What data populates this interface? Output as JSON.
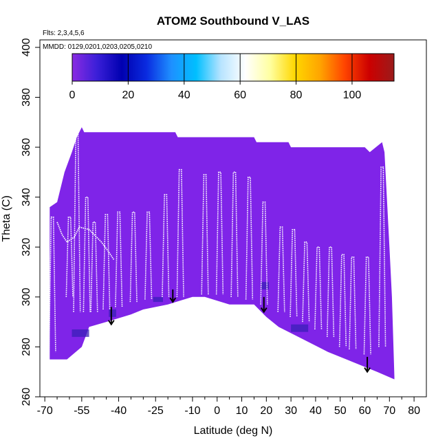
{
  "chart_data": {
    "type": "heatmap",
    "title": "ATOM2 Southbound V_LAS",
    "flights_note": "Flts: 2,3,4,5,6",
    "dates_note": "MMDD: 0129,0201,0203,0205,0210",
    "xlabel": "Latitude (deg N)",
    "ylabel": "Theta (C)",
    "xlim": [
      -72,
      85
    ],
    "ylim": [
      260,
      403
    ],
    "x_ticks_major": [
      -70,
      -55,
      -40,
      -25,
      -10,
      0,
      10,
      20,
      30,
      40,
      50,
      60,
      70,
      80
    ],
    "x_ticks_labels": [
      "-70",
      "-55",
      "-40",
      "-25",
      "-10",
      "0",
      "10",
      "20",
      "30",
      "40",
      "50",
      "60",
      "70",
      "80"
    ],
    "x_ticks_minor": [
      -65,
      -60,
      -50,
      -45,
      -35,
      -30,
      -20,
      -15,
      -5,
      5,
      15,
      25,
      35,
      45,
      55,
      65,
      75
    ],
    "y_ticks": [
      260,
      280,
      300,
      320,
      340,
      360,
      380,
      400
    ],
    "y_tick_labels": [
      "260",
      "280",
      "300",
      "320",
      "340",
      "360",
      "380",
      "400"
    ],
    "colorbar": {
      "min": 0,
      "max": 115,
      "ticks": [
        0,
        20,
        40,
        60,
        80,
        100
      ],
      "tick_labels": [
        "0",
        "20",
        "40",
        "60",
        "80",
        "100"
      ],
      "colors": [
        "#8a2be2",
        "#3a1fd8",
        "#0000b0",
        "#0a2be0",
        "#1e90ff",
        "#00bfff",
        "#b8e4ff",
        "#ffffff",
        "#ffffa0",
        "#ffd700",
        "#ffa500",
        "#ff4500",
        "#cc0000",
        "#9b1b1b"
      ]
    },
    "fill_color": "#7f24e8",
    "domain_top": [
      [
        -68,
        336
      ],
      [
        -65,
        338
      ],
      [
        -62,
        350
      ],
      [
        -59,
        358
      ],
      [
        -57,
        364
      ],
      [
        -55,
        368
      ],
      [
        -54,
        366
      ],
      [
        -37,
        366
      ],
      [
        -17,
        366
      ],
      [
        -16,
        364
      ],
      [
        15,
        364
      ],
      [
        16,
        362
      ],
      [
        29,
        362
      ],
      [
        30,
        360
      ],
      [
        60,
        360
      ],
      [
        62,
        358
      ],
      [
        67,
        362
      ],
      [
        68,
        358
      ],
      [
        70,
        320
      ],
      [
        71,
        300
      ],
      [
        72,
        268
      ]
    ],
    "domain_bottom": [
      [
        -68,
        275
      ],
      [
        -61,
        275
      ],
      [
        -55,
        280
      ],
      [
        -52,
        288
      ],
      [
        -45,
        290
      ],
      [
        -35,
        293
      ],
      [
        -30,
        295
      ],
      [
        -20,
        297
      ],
      [
        -10,
        300
      ],
      [
        -5,
        300
      ],
      [
        5,
        297
      ],
      [
        15,
        297
      ],
      [
        20,
        292
      ],
      [
        25,
        288
      ],
      [
        35,
        283
      ],
      [
        45,
        278
      ],
      [
        55,
        274
      ],
      [
        65,
        270
      ],
      [
        72,
        267
      ]
    ],
    "profiles": [
      {
        "lat": -67,
        "low": 278,
        "high": 332
      },
      {
        "lat": -60,
        "low": 300,
        "high": 332
      },
      {
        "lat": -57,
        "low": 294,
        "high": 365
      },
      {
        "lat": -53,
        "low": 294,
        "high": 340
      },
      {
        "lat": -50,
        "low": 294,
        "high": 330
      },
      {
        "lat": -45,
        "low": 295,
        "high": 333
      },
      {
        "lat": -40,
        "low": 296,
        "high": 334
      },
      {
        "lat": -34,
        "low": 298,
        "high": 334
      },
      {
        "lat": -28,
        "low": 299,
        "high": 334
      },
      {
        "lat": -21,
        "low": 300,
        "high": 341
      },
      {
        "lat": -15,
        "low": 300,
        "high": 351
      },
      {
        "lat": -5,
        "low": 301,
        "high": 349
      },
      {
        "lat": 1,
        "low": 301,
        "high": 350
      },
      {
        "lat": 7,
        "low": 300,
        "high": 350
      },
      {
        "lat": 13,
        "low": 299,
        "high": 348
      },
      {
        "lat": 19,
        "low": 297,
        "high": 338
      },
      {
        "lat": 26,
        "low": 294,
        "high": 328
      },
      {
        "lat": 31,
        "low": 292,
        "high": 327
      },
      {
        "lat": 36,
        "low": 290,
        "high": 322
      },
      {
        "lat": 41,
        "low": 287,
        "high": 320
      },
      {
        "lat": 46,
        "low": 284,
        "high": 320
      },
      {
        "lat": 51,
        "low": 280,
        "high": 317
      },
      {
        "lat": 55,
        "low": 279,
        "high": 316
      },
      {
        "lat": 61,
        "low": 277,
        "high": 316
      },
      {
        "lat": 67,
        "low": 280,
        "high": 352
      }
    ],
    "extra_trace": [
      [
        -65,
        330
      ],
      [
        -63,
        325
      ],
      [
        -61,
        322
      ],
      [
        -58,
        324
      ],
      [
        -56,
        328
      ],
      [
        -52,
        327
      ],
      [
        -47,
        322
      ],
      [
        -44,
        318
      ],
      [
        -42,
        315
      ]
    ],
    "arrows": [
      {
        "lat": -43,
        "theta_start": 296,
        "theta_end": 289
      },
      {
        "lat": -18,
        "theta_start": 303,
        "theta_end": 298
      },
      {
        "lat": 19,
        "theta_start": 300,
        "theta_end": 294
      },
      {
        "lat": 61,
        "theta_start": 276,
        "theta_end": 270
      }
    ],
    "dark_patches": [
      {
        "lat_min": -26,
        "lat_max": -22,
        "theta_min": 298,
        "theta_max": 300,
        "value": 12
      },
      {
        "lat_min": -44,
        "lat_max": -41,
        "theta_min": 292,
        "theta_max": 295,
        "value": 6
      },
      {
        "lat_min": 30,
        "lat_max": 37,
        "theta_min": 286,
        "theta_max": 289,
        "value": 6
      },
      {
        "lat_min": 18,
        "lat_max": 21,
        "theta_min": 303,
        "theta_max": 306,
        "value": 5
      },
      {
        "lat_min": -59,
        "lat_max": -52,
        "theta_min": 284,
        "theta_max": 287,
        "value": 4
      }
    ]
  }
}
